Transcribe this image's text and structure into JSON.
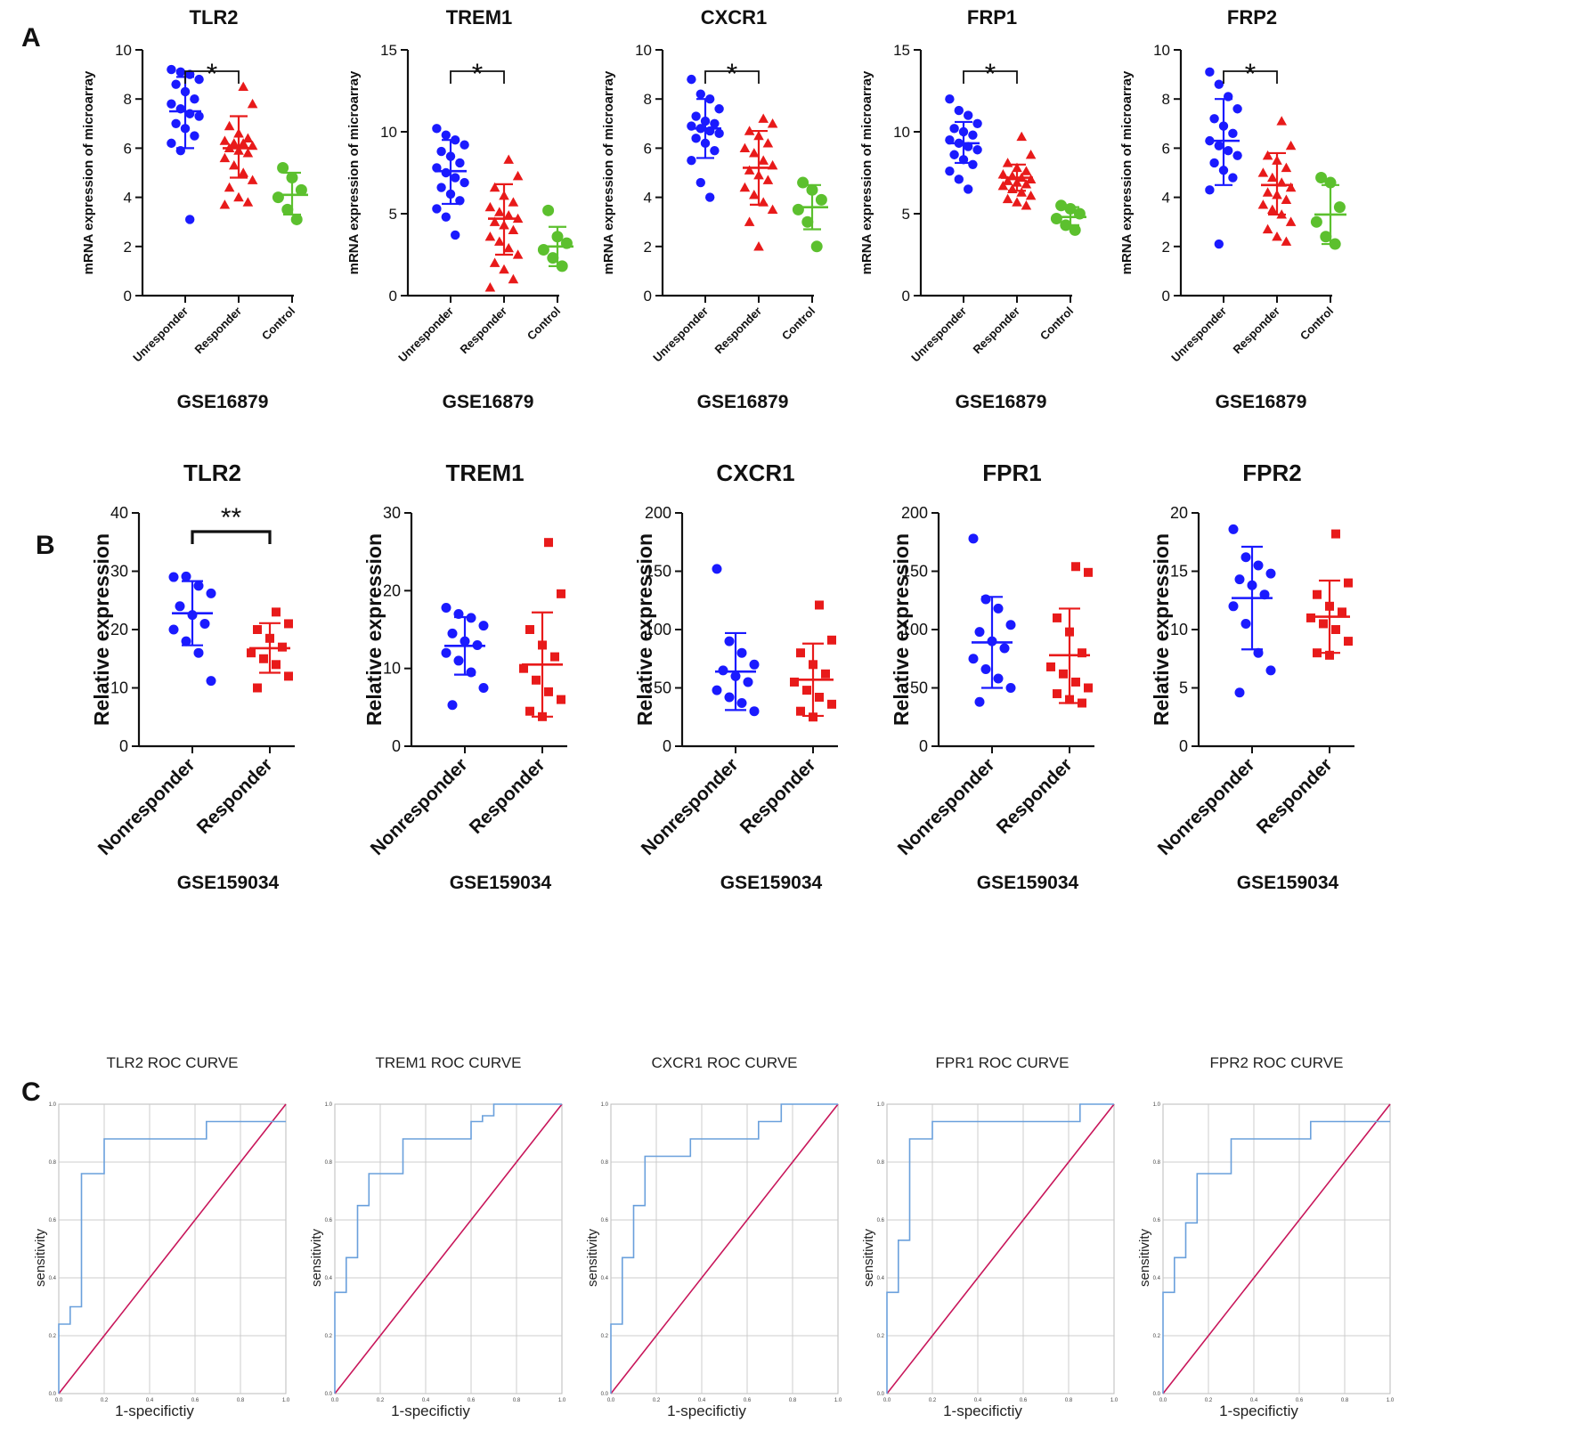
{
  "figure": {
    "panel_labels": [
      "A",
      "B",
      "C"
    ]
  },
  "colors": {
    "unresponder": "#1a1aff",
    "responder": "#e81a1a",
    "control": "#5cc02e",
    "roc_curve": "#6aa0dc",
    "reference": "#c8165a",
    "grid": "#cccccc"
  },
  "chart_data": [
    {
      "type": "scatter",
      "panel": "A",
      "title": "TLR2",
      "xlabel": "GSE16879",
      "ylabel": "mRNA expression of microarray",
      "ylim": [
        0,
        10
      ],
      "yticks": [
        "0",
        "2",
        "4",
        "6",
        "8",
        "10"
      ],
      "categories": [
        "Unresponder",
        "Responder",
        "Control"
      ],
      "significance": {
        "label": "*",
        "between": [
          0,
          1
        ]
      },
      "groups": [
        {
          "name": "Unresponder",
          "marker": "circle",
          "mean": 7.5,
          "sd_low": 6.0,
          "sd_high": 8.9,
          "points": [
            9.2,
            9.1,
            9.0,
            8.8,
            8.6,
            8.3,
            8.0,
            7.8,
            7.6,
            7.4,
            7.3,
            7.0,
            6.8,
            6.5,
            6.2,
            5.9,
            3.1
          ]
        },
        {
          "name": "Responder",
          "marker": "triangle",
          "mean": 6.0,
          "sd_low": 4.8,
          "sd_high": 7.3,
          "points": [
            8.5,
            7.8,
            6.9,
            6.6,
            6.4,
            6.3,
            6.2,
            6.2,
            6.1,
            6.0,
            5.9,
            5.8,
            5.6,
            5.3,
            5.0,
            4.7,
            4.4,
            4.0,
            3.8,
            3.7
          ]
        },
        {
          "name": "Control",
          "marker": "circle",
          "mean": 4.1,
          "sd_low": 3.3,
          "sd_high": 5.0,
          "points": [
            5.2,
            4.8,
            4.3,
            4.0,
            3.5,
            3.1
          ]
        }
      ]
    },
    {
      "type": "scatter",
      "panel": "A",
      "title": "TREM1",
      "xlabel": "GSE16879",
      "ylabel": "mRNA expression of microarray",
      "ylim": [
        0,
        15
      ],
      "yticks": [
        "0",
        "5",
        "10",
        "15"
      ],
      "categories": [
        "Unresponder",
        "Responder",
        "Control"
      ],
      "significance": {
        "label": "*",
        "between": [
          0,
          1
        ]
      },
      "groups": [
        {
          "name": "Unresponder",
          "marker": "circle",
          "mean": 7.6,
          "sd_low": 5.6,
          "sd_high": 9.5,
          "points": [
            10.2,
            9.8,
            9.5,
            9.2,
            8.8,
            8.5,
            8.1,
            7.8,
            7.5,
            7.2,
            6.9,
            6.6,
            6.2,
            5.8,
            5.3,
            4.8,
            3.7
          ]
        },
        {
          "name": "Responder",
          "marker": "triangle",
          "mean": 4.7,
          "sd_low": 2.5,
          "sd_high": 6.8,
          "points": [
            8.3,
            7.3,
            6.6,
            6.1,
            5.7,
            5.4,
            5.1,
            4.9,
            4.7,
            4.5,
            4.3,
            4.0,
            3.6,
            3.3,
            2.9,
            2.5,
            2.0,
            1.6,
            1.0,
            0.5
          ]
        },
        {
          "name": "Control",
          "marker": "circle",
          "mean": 3.0,
          "sd_low": 1.8,
          "sd_high": 4.2,
          "points": [
            5.2,
            3.6,
            3.2,
            2.8,
            2.3,
            1.8
          ]
        }
      ]
    },
    {
      "type": "scatter",
      "panel": "A",
      "title": "CXCR1",
      "xlabel": "GSE16879",
      "ylabel": "mRNA expression of microarray",
      "ylim": [
        0,
        10
      ],
      "yticks": [
        "0",
        "2",
        "4",
        "6",
        "8",
        "10"
      ],
      "categories": [
        "Unresponder",
        "Responder",
        "Control"
      ],
      "significance": {
        "label": "*",
        "between": [
          0,
          1
        ]
      },
      "groups": [
        {
          "name": "Unresponder",
          "marker": "circle",
          "mean": 6.8,
          "sd_low": 5.6,
          "sd_high": 8.0,
          "points": [
            8.8,
            8.2,
            8.0,
            7.6,
            7.3,
            7.1,
            7.0,
            6.9,
            6.8,
            6.7,
            6.6,
            6.4,
            6.2,
            5.9,
            5.5,
            4.6,
            4.0
          ]
        },
        {
          "name": "Responder",
          "marker": "triangle",
          "mean": 5.2,
          "sd_low": 3.7,
          "sd_high": 6.7,
          "points": [
            7.2,
            7.0,
            6.7,
            6.5,
            6.2,
            6.0,
            5.8,
            5.5,
            5.3,
            5.1,
            4.9,
            4.7,
            4.4,
            4.1,
            3.8,
            3.5,
            3.0,
            2.0
          ]
        },
        {
          "name": "Control",
          "marker": "circle",
          "mean": 3.6,
          "sd_low": 2.7,
          "sd_high": 4.5,
          "points": [
            4.6,
            4.3,
            3.9,
            3.5,
            3.0,
            2.0
          ]
        }
      ]
    },
    {
      "type": "scatter",
      "panel": "A",
      "title": "FRP1",
      "xlabel": "GSE16879",
      "ylabel": "mRNA expression of microarray",
      "ylim": [
        0,
        15
      ],
      "yticks": [
        "0",
        "5",
        "10",
        "15"
      ],
      "categories": [
        "Unresponder",
        "Responder",
        "Control"
      ],
      "significance": {
        "label": "*",
        "between": [
          0,
          1
        ]
      },
      "groups": [
        {
          "name": "Unresponder",
          "marker": "circle",
          "mean": 9.3,
          "sd_low": 8.1,
          "sd_high": 10.6,
          "points": [
            12.0,
            11.3,
            11.0,
            10.5,
            10.2,
            10.0,
            9.8,
            9.5,
            9.3,
            9.1,
            8.9,
            8.6,
            8.3,
            8.0,
            7.6,
            7.1,
            6.5
          ]
        },
        {
          "name": "Responder",
          "marker": "triangle",
          "mean": 7.2,
          "sd_low": 6.4,
          "sd_high": 8.0,
          "points": [
            9.7,
            8.6,
            8.1,
            7.8,
            7.6,
            7.4,
            7.3,
            7.2,
            7.1,
            7.0,
            6.9,
            6.8,
            6.7,
            6.5,
            6.3,
            6.1,
            5.9,
            5.7,
            5.5
          ]
        },
        {
          "name": "Control",
          "marker": "circle",
          "mean": 4.8,
          "sd_low": 4.3,
          "sd_high": 5.4,
          "points": [
            5.5,
            5.3,
            5.0,
            4.7,
            4.3,
            4.0
          ]
        }
      ]
    },
    {
      "type": "scatter",
      "panel": "A",
      "title": "FRP2",
      "xlabel": "GSE16879",
      "ylabel": "mRNA expression of microarray",
      "ylim": [
        0,
        10
      ],
      "yticks": [
        "0",
        "2",
        "4",
        "6",
        "8",
        "10"
      ],
      "categories": [
        "Unresponder",
        "Responder",
        "Control"
      ],
      "significance": {
        "label": "*",
        "between": [
          0,
          1
        ]
      },
      "groups": [
        {
          "name": "Unresponder",
          "marker": "circle",
          "mean": 6.3,
          "sd_low": 4.5,
          "sd_high": 8.0,
          "points": [
            9.1,
            8.6,
            8.1,
            7.6,
            7.2,
            6.9,
            6.6,
            6.3,
            6.1,
            5.9,
            5.7,
            5.4,
            5.1,
            4.8,
            4.3,
            2.1
          ]
        },
        {
          "name": "Responder",
          "marker": "triangle",
          "mean": 4.5,
          "sd_low": 3.3,
          "sd_high": 5.8,
          "points": [
            7.1,
            6.1,
            5.7,
            5.5,
            5.2,
            5.0,
            4.8,
            4.6,
            4.4,
            4.2,
            4.1,
            3.9,
            3.7,
            3.5,
            3.3,
            3.0,
            2.7,
            2.4,
            2.2
          ]
        },
        {
          "name": "Control",
          "marker": "circle",
          "mean": 3.3,
          "sd_low": 2.1,
          "sd_high": 4.5,
          "points": [
            4.8,
            4.6,
            3.6,
            3.0,
            2.4,
            2.1
          ]
        }
      ]
    },
    {
      "type": "scatter",
      "panel": "B",
      "title": "TLR2",
      "xlabel": "GSE159034",
      "ylabel": "Relative expression",
      "ylim": [
        0,
        40
      ],
      "yticks": [
        "0",
        "10",
        "20",
        "30",
        "40"
      ],
      "categories": [
        "Nonresponder",
        "Responder"
      ],
      "significance": {
        "label": "**",
        "between": [
          0,
          1
        ]
      },
      "groups": [
        {
          "name": "Nonresponder",
          "marker": "circle",
          "mean": 22.8,
          "sd_low": 17.3,
          "sd_high": 28.3,
          "points": [
            29.0,
            29.1,
            27.5,
            26.2,
            24.0,
            22.5,
            21.0,
            20.0,
            18.0,
            16.0,
            11.2
          ]
        },
        {
          "name": "Responder",
          "marker": "square",
          "mean": 16.8,
          "sd_low": 12.6,
          "sd_high": 21.1,
          "points": [
            23.0,
            21.0,
            20.0,
            18.5,
            17.0,
            16.0,
            15.0,
            14.0,
            12.0,
            10.0
          ]
        }
      ]
    },
    {
      "type": "scatter",
      "panel": "B",
      "title": "TREM1",
      "xlabel": "GSE159034",
      "ylabel": "Relative expression",
      "ylim": [
        0,
        30
      ],
      "yticks": [
        "0",
        "10",
        "20",
        "30"
      ],
      "categories": [
        "Nonresponder",
        "Responder"
      ],
      "significance": null,
      "groups": [
        {
          "name": "Nonresponder",
          "marker": "circle",
          "mean": 12.9,
          "sd_low": 9.2,
          "sd_high": 16.6,
          "points": [
            17.8,
            17.0,
            16.5,
            15.5,
            14.5,
            13.5,
            13.0,
            12.0,
            11.0,
            9.5,
            7.5,
            5.3
          ]
        },
        {
          "name": "Responder",
          "marker": "square",
          "mean": 10.5,
          "sd_low": 3.8,
          "sd_high": 17.2,
          "points": [
            26.2,
            19.6,
            15.0,
            13.0,
            11.5,
            10.0,
            8.5,
            7.0,
            6.0,
            4.5,
            3.8
          ]
        }
      ]
    },
    {
      "type": "scatter",
      "panel": "B",
      "title": "CXCR1",
      "xlabel": "GSE159034",
      "ylabel": "Relative expression",
      "ylim": [
        0,
        200
      ],
      "yticks": [
        "0",
        "50",
        "100",
        "150",
        "200"
      ],
      "categories": [
        "Nonresponder",
        "Responder"
      ],
      "significance": null,
      "groups": [
        {
          "name": "Nonresponder",
          "marker": "circle",
          "mean": 64,
          "sd_low": 31,
          "sd_high": 97,
          "points": [
            152,
            90,
            80,
            70,
            65,
            60,
            55,
            48,
            42,
            37,
            30
          ]
        },
        {
          "name": "Responder",
          "marker": "square",
          "mean": 57,
          "sd_low": 26,
          "sd_high": 88,
          "points": [
            121,
            91,
            80,
            70,
            62,
            55,
            48,
            42,
            36,
            30,
            25
          ]
        }
      ]
    },
    {
      "type": "scatter",
      "panel": "B",
      "title": "FPR1",
      "xlabel": "GSE159034",
      "ylabel": "Relative expression",
      "ylim": [
        0,
        200
      ],
      "yticks": [
        "0",
        "50",
        "100",
        "150",
        "200"
      ],
      "categories": [
        "Nonresponder",
        "Responder"
      ],
      "significance": null,
      "groups": [
        {
          "name": "Nonresponder",
          "marker": "circle",
          "mean": 89,
          "sd_low": 50,
          "sd_high": 128,
          "points": [
            178,
            126,
            118,
            104,
            98,
            90,
            84,
            75,
            66,
            58,
            50,
            38
          ]
        },
        {
          "name": "Responder",
          "marker": "square",
          "mean": 78,
          "sd_low": 37,
          "sd_high": 118,
          "points": [
            154,
            149,
            110,
            98,
            80,
            68,
            62,
            55,
            50,
            45,
            40,
            37
          ]
        }
      ]
    },
    {
      "type": "scatter",
      "panel": "B",
      "title": "FPR2",
      "xlabel": "GSE159034",
      "ylabel": "Relative expression",
      "ylim": [
        0,
        20
      ],
      "yticks": [
        "0",
        "5",
        "10",
        "15",
        "20"
      ],
      "categories": [
        "Nonresponder",
        "Responder"
      ],
      "significance": null,
      "groups": [
        {
          "name": "Nonresponder",
          "marker": "circle",
          "mean": 12.7,
          "sd_low": 8.3,
          "sd_high": 17.1,
          "points": [
            18.6,
            16.2,
            15.5,
            14.8,
            14.3,
            13.8,
            13.0,
            12.0,
            10.5,
            8.0,
            6.5,
            4.6
          ]
        },
        {
          "name": "Responder",
          "marker": "square",
          "mean": 11.1,
          "sd_low": 8.0,
          "sd_high": 14.2,
          "points": [
            18.2,
            14.0,
            13.0,
            12.0,
            11.5,
            11.0,
            10.5,
            10.0,
            9.0,
            8.0,
            7.8
          ]
        }
      ]
    },
    {
      "type": "line",
      "panel": "C",
      "title": "TLR2  ROC CURVE",
      "xlabel": "1-specifictiy",
      "ylabel": "sensitivity",
      "xlim": [
        0,
        1
      ],
      "ylim": [
        0,
        1
      ],
      "ticks": [
        "0.0",
        "0.2",
        "0.4",
        "0.6",
        "0.8",
        "1.0"
      ],
      "x": [
        0,
        0,
        0.05,
        0.05,
        0.1,
        0.1,
        0.2,
        0.2,
        0.65,
        0.65,
        0.95,
        1.0
      ],
      "y": [
        0,
        0.24,
        0.24,
        0.3,
        0.3,
        0.76,
        0.76,
        0.88,
        0.88,
        0.94,
        0.94,
        0.94
      ]
    },
    {
      "type": "line",
      "panel": "C",
      "title": "TREM1  ROC CURVE",
      "xlabel": "1-specifictiy",
      "ylabel": "sensitivity",
      "xlim": [
        0,
        1
      ],
      "ylim": [
        0,
        1
      ],
      "ticks": [
        "0.0",
        "0.2",
        "0.4",
        "0.6",
        "0.8",
        "1.0"
      ],
      "x": [
        0,
        0,
        0.05,
        0.05,
        0.1,
        0.1,
        0.15,
        0.15,
        0.3,
        0.3,
        0.6,
        0.6,
        0.65,
        0.65,
        0.7,
        0.7,
        1.0
      ],
      "y": [
        0,
        0.35,
        0.35,
        0.47,
        0.47,
        0.65,
        0.65,
        0.76,
        0.76,
        0.88,
        0.88,
        0.94,
        0.94,
        0.96,
        0.96,
        1.0,
        1.0
      ]
    },
    {
      "type": "line",
      "panel": "C",
      "title": "CXCR1 ROC CURVE",
      "xlabel": "1-specifictiy",
      "ylabel": "sensitivity",
      "xlim": [
        0,
        1
      ],
      "ylim": [
        0,
        1
      ],
      "ticks": [
        "0.0",
        "0.2",
        "0.4",
        "0.6",
        "0.8",
        "1.0"
      ],
      "x": [
        0,
        0,
        0.05,
        0.05,
        0.1,
        0.1,
        0.15,
        0.15,
        0.35,
        0.35,
        0.65,
        0.65,
        0.75,
        0.75,
        1.0
      ],
      "y": [
        0,
        0.24,
        0.24,
        0.47,
        0.47,
        0.65,
        0.65,
        0.82,
        0.82,
        0.88,
        0.88,
        0.94,
        0.94,
        1.0,
        1.0
      ]
    },
    {
      "type": "line",
      "panel": "C",
      "title": "FPR1   ROC CURVE",
      "xlabel": "1-specifictiy",
      "ylabel": "sensitivity",
      "xlim": [
        0,
        1
      ],
      "ylim": [
        0,
        1
      ],
      "ticks": [
        "0.0",
        "0.2",
        "0.4",
        "0.6",
        "0.8",
        "1.0"
      ],
      "x": [
        0,
        0,
        0.05,
        0.05,
        0.1,
        0.1,
        0.2,
        0.2,
        0.85,
        0.85,
        1.0
      ],
      "y": [
        0,
        0.35,
        0.35,
        0.53,
        0.53,
        0.88,
        0.88,
        0.94,
        0.94,
        1.0,
        1.0
      ]
    },
    {
      "type": "line",
      "panel": "C",
      "title": "FPR2  ROC CURVE",
      "xlabel": "1-specifictiy",
      "ylabel": "sensitivity",
      "xlim": [
        0,
        1
      ],
      "ylim": [
        0,
        1
      ],
      "ticks": [
        "0.0",
        "0.2",
        "0.4",
        "0.6",
        "0.8",
        "1.0"
      ],
      "x": [
        0,
        0,
        0.05,
        0.05,
        0.1,
        0.1,
        0.15,
        0.15,
        0.3,
        0.3,
        0.65,
        0.65,
        1.0
      ],
      "y": [
        0,
        0.35,
        0.35,
        0.47,
        0.47,
        0.59,
        0.59,
        0.76,
        0.76,
        0.88,
        0.88,
        0.94,
        0.94
      ]
    }
  ]
}
